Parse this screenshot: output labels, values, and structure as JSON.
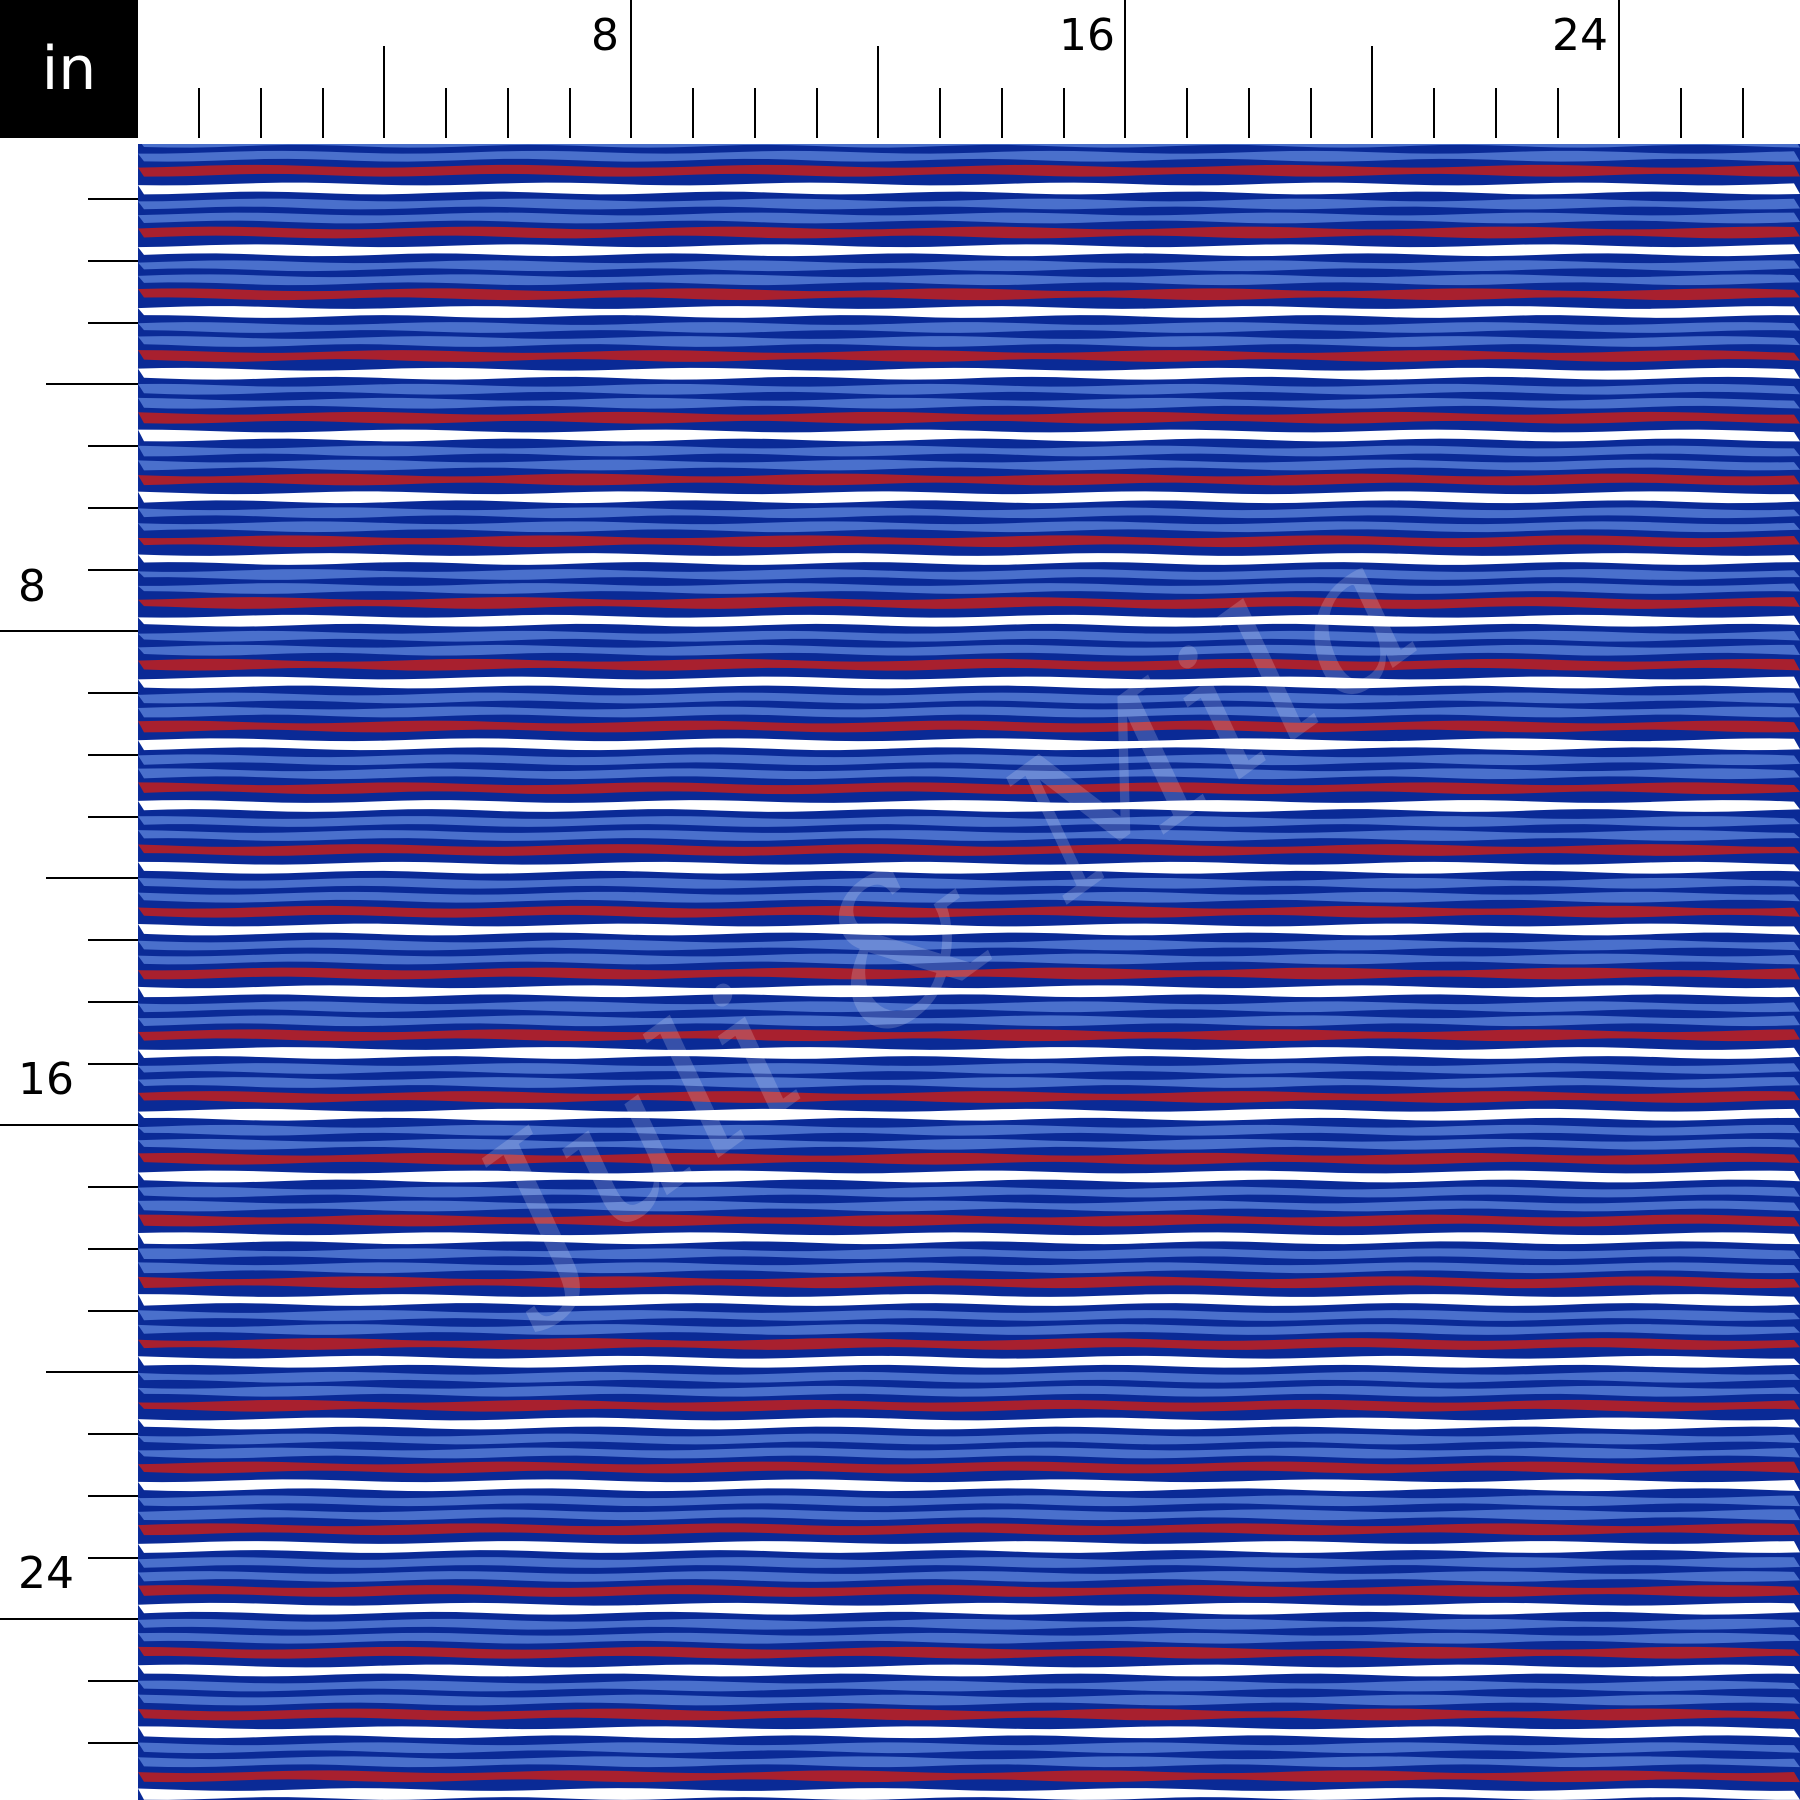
{
  "unit": "in",
  "top_ruler": {
    "labels": [
      "8",
      "16",
      "24"
    ]
  },
  "left_ruler": {
    "labels": [
      "8",
      "16",
      "24"
    ]
  },
  "colors": {
    "dark_blue": "#0a2a96",
    "light_blue": "#4a70cc",
    "red": "#a8202e",
    "white": "#ffffff",
    "ruler_ink": "#000000",
    "badge_bg": "#000000"
  },
  "pattern": {
    "name": "horizontal patriotic stripes",
    "stripe_sequence": [
      "white",
      "dark_blue",
      "light_blue",
      "dark_blue",
      "light_blue",
      "dark_blue",
      "red",
      "dark_blue"
    ]
  },
  "watermark": "Juli & Mila"
}
